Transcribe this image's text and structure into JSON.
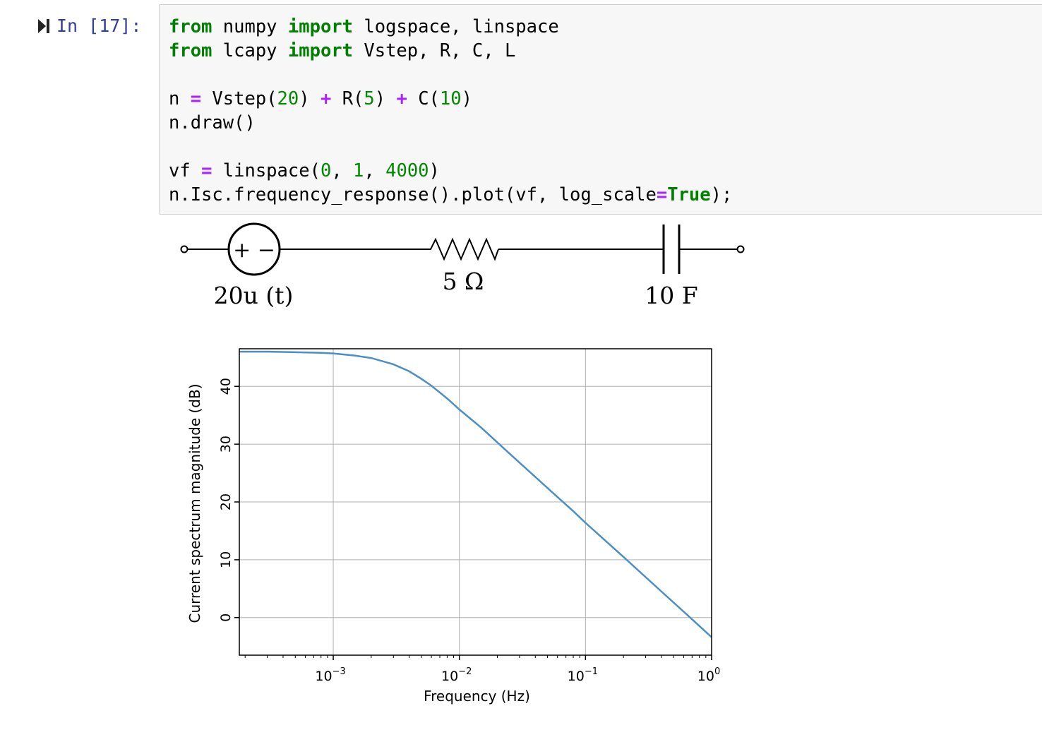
{
  "cell": {
    "prompt": "In [17]:",
    "code_lines": [
      [
        {
          "t": "from",
          "c": "kw"
        },
        {
          "t": " numpy "
        },
        {
          "t": "import",
          "c": "kw"
        },
        {
          "t": " logspace, linspace"
        }
      ],
      [
        {
          "t": "from",
          "c": "kw"
        },
        {
          "t": " lcapy "
        },
        {
          "t": "import",
          "c": "kw"
        },
        {
          "t": " Vstep, R, C, L"
        }
      ],
      [],
      [
        {
          "t": "n "
        },
        {
          "t": "=",
          "c": "op"
        },
        {
          "t": " Vstep("
        },
        {
          "t": "20",
          "c": "num"
        },
        {
          "t": ") "
        },
        {
          "t": "+",
          "c": "op"
        },
        {
          "t": " R("
        },
        {
          "t": "5",
          "c": "num"
        },
        {
          "t": ") "
        },
        {
          "t": "+",
          "c": "op"
        },
        {
          "t": " C("
        },
        {
          "t": "10",
          "c": "num"
        },
        {
          "t": ")"
        }
      ],
      [
        {
          "t": "n.draw()"
        }
      ],
      [],
      [
        {
          "t": "vf "
        },
        {
          "t": "=",
          "c": "op"
        },
        {
          "t": " linspace("
        },
        {
          "t": "0",
          "c": "num"
        },
        {
          "t": ", "
        },
        {
          "t": "1",
          "c": "num"
        },
        {
          "t": ", "
        },
        {
          "t": "4000",
          "c": "num"
        },
        {
          "t": ")"
        }
      ],
      [
        {
          "t": "n.Isc.frequency_response().plot(vf, log_scale"
        },
        {
          "t": "=",
          "c": "op"
        },
        {
          "t": "True",
          "c": "kw"
        },
        {
          "t": ");"
        }
      ]
    ]
  },
  "circuit": {
    "source_symbol": "+ −",
    "source_label": "20u (t)",
    "resistor_label": "5 Ω",
    "capacitor_label": "10 F"
  },
  "chart_data": {
    "type": "line",
    "xscale": "log",
    "xlabel": "Frequency (Hz)",
    "ylabel": "Current spectrum magnitude (dB)",
    "xlim": [
      0.00018,
      1.0
    ],
    "ylim": [
      -6.5,
      46.5
    ],
    "xticks": [
      0.001,
      0.01,
      0.1,
      1
    ],
    "xtick_labels": [
      {
        "base": "10",
        "exp": "−3"
      },
      {
        "base": "10",
        "exp": "−2"
      },
      {
        "base": "10",
        "exp": "−1"
      },
      {
        "base": "10",
        "exp": "0"
      }
    ],
    "yticks": [
      0,
      10,
      20,
      30,
      40
    ],
    "ytick_labels": [
      "0",
      "10",
      "20",
      "30",
      "40"
    ],
    "grid": true,
    "line_color": "#4b8fc4",
    "series": [
      {
        "x": [
          0.00018,
          0.0003,
          0.0005,
          0.0008,
          0.001,
          0.0015,
          0.002,
          0.003,
          0.004,
          0.005,
          0.006,
          0.008,
          0.01,
          0.015,
          0.02,
          0.03,
          0.05,
          0.08,
          0.1,
          0.2,
          0.3,
          0.5,
          0.7,
          1.0
        ],
        "y": [
          46.0,
          46.0,
          45.9,
          45.8,
          45.7,
          45.3,
          44.9,
          43.8,
          42.6,
          41.3,
          40.1,
          37.9,
          36.0,
          32.8,
          30.3,
          26.8,
          22.4,
          18.4,
          16.4,
          10.5,
          7.0,
          2.6,
          -0.3,
          -3.4
        ]
      }
    ]
  }
}
